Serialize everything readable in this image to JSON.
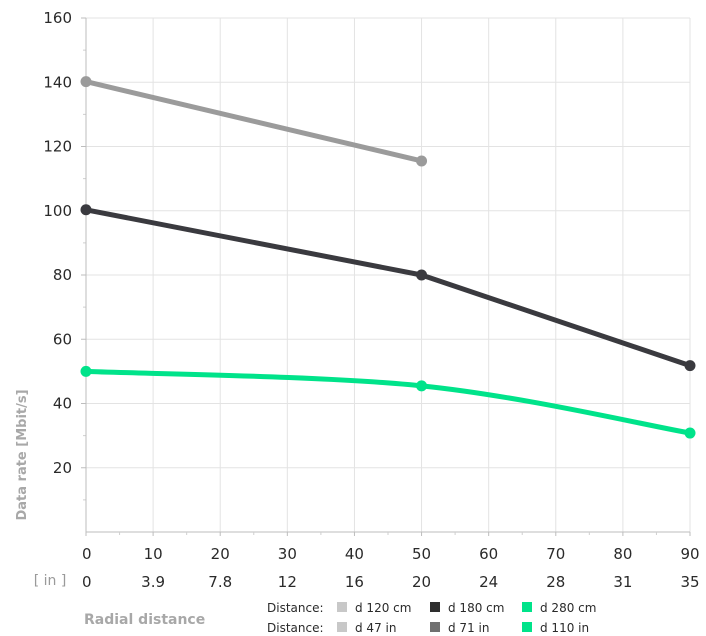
{
  "chart_data": {
    "type": "line",
    "ylabel": "Data rate [Mbit/s]",
    "xlabel": "Radial distance",
    "x_unit_label": "[ in ]",
    "ylim": [
      0,
      160
    ],
    "yticks": [
      20,
      40,
      60,
      80,
      100,
      120,
      140,
      160
    ],
    "xlim": [
      0,
      90
    ],
    "xticks_primary": [
      "0",
      "10",
      "20",
      "30",
      "40",
      "50",
      "60",
      "70",
      "80",
      "90"
    ],
    "xticks_secondary": [
      "0",
      "3.9",
      "7.8",
      "12",
      "16",
      "20",
      "24",
      "28",
      "31",
      "35"
    ],
    "grid": true,
    "series": [
      {
        "name": "d 120 cm",
        "name_in": "d 47 in",
        "color": "#9b9b9b",
        "curve": "linear",
        "points": [
          {
            "x": 0,
            "y": 140.2
          },
          {
            "x": 50,
            "y": 115.5
          }
        ]
      },
      {
        "name": "d 180 cm",
        "name_in": "d 71 in",
        "color": "#3a3a3f",
        "curve": "linear",
        "points": [
          {
            "x": 0,
            "y": 100.3
          },
          {
            "x": 50,
            "y": 80
          },
          {
            "x": 90,
            "y": 51.8
          }
        ]
      },
      {
        "name": "d 280 cm",
        "name_in": "d 110 in",
        "color": "#00e38a",
        "curve": "smooth",
        "points": [
          {
            "x": 0,
            "y": 50
          },
          {
            "x": 50,
            "y": 45.5
          },
          {
            "x": 90,
            "y": 30.8
          }
        ]
      }
    ],
    "legend": {
      "row1_label": "Distance:",
      "row2_label": "Distance:",
      "row1_colors": [
        "#c8c8c8",
        "#2e2e2e",
        "#00e38a"
      ],
      "row2_colors": [
        "#c8c8c8",
        "#707070",
        "#00e38a"
      ]
    }
  }
}
